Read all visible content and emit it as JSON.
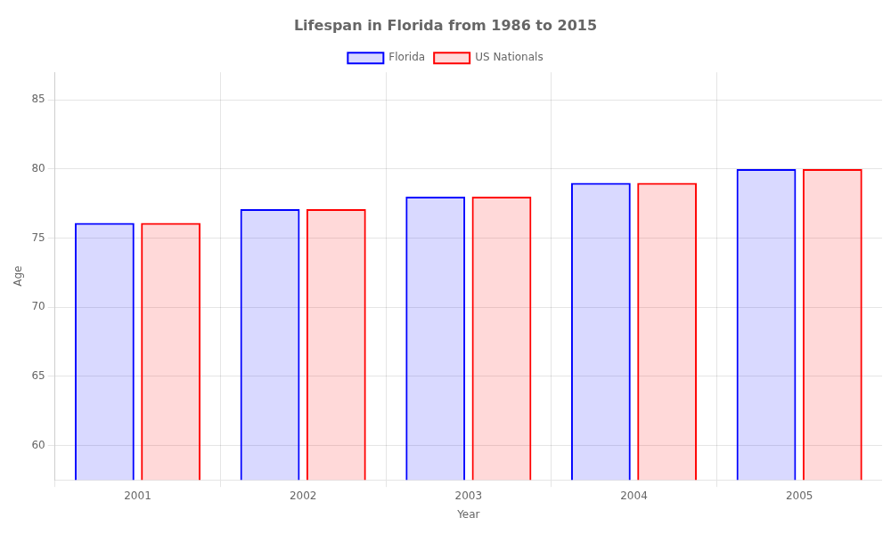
{
  "chart_data": {
    "type": "bar",
    "title": "Lifespan in Florida from 1986 to 2015",
    "xlabel": "Year",
    "ylabel": "Age",
    "categories": [
      "2001",
      "2002",
      "2003",
      "2004",
      "2005"
    ],
    "series": [
      {
        "name": "Florida",
        "color": "#0000ff",
        "values": [
          76.1,
          77.1,
          78.0,
          79.0,
          80.0
        ]
      },
      {
        "name": "US Nationals",
        "color": "#ff0000",
        "values": [
          76.1,
          77.1,
          78.0,
          79.0,
          80.0
        ]
      }
    ],
    "ylim": [
      57.5,
      87
    ],
    "yticks": [
      60,
      65,
      70,
      75,
      80,
      85
    ],
    "grid": true,
    "legend": "top"
  }
}
